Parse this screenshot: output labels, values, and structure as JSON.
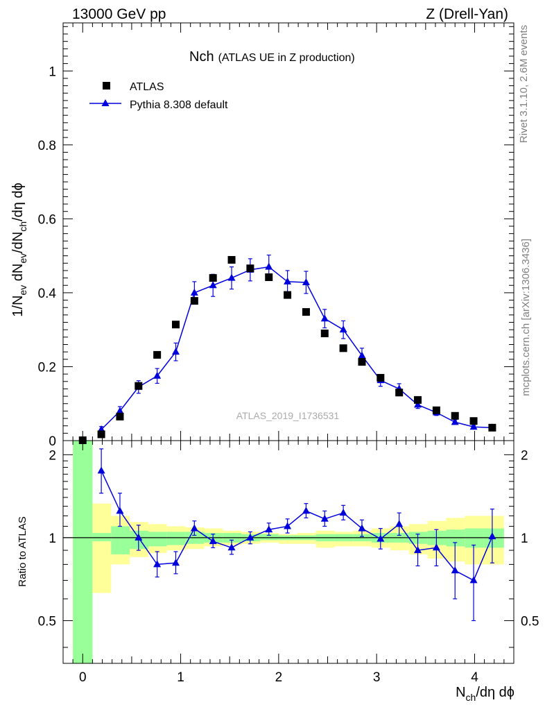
{
  "header": {
    "energy": "13000 GeV pp",
    "process": "Z (Drell-Yan)"
  },
  "side_labels": {
    "rivet": "Rivet 3.1.10,  2.6M events",
    "source": "mcplots.cern.ch [arXiv:1306.3436]"
  },
  "title_main": "Nch",
  "title_sub": "(ATLAS UE in Z production)",
  "watermark": "ATLAS_2019_I1736531",
  "legend": {
    "data_label": "ATLAS",
    "mc_label": "Pythia 8.308 default"
  },
  "axes": {
    "ylabel_main": "1/N_ev dN_ev/dN_ch/dη dϕ",
    "ylabel_ratio": "Ratio to ATLAS",
    "xlabel": "N_ch/dη dϕ"
  },
  "colors": {
    "mc": "#0000dd",
    "data": "#000000",
    "band_inner": "#99ff99",
    "band_outer": "#ffff99"
  },
  "chart_data": [
    {
      "type": "scatter",
      "panel": "main",
      "title": "Nch (ATLAS UE in Z production)",
      "xlabel": "N_ch/dη dϕ",
      "ylabel": "1/N_ev dN_ev/dN_ch/dη dϕ",
      "xlim": [
        -0.2,
        4.4
      ],
      "ylim": [
        0,
        1.13
      ],
      "xticks": [
        0,
        1,
        2,
        3,
        4
      ],
      "yticks": [
        0,
        0.2,
        0.4,
        0.6,
        0.8,
        1
      ],
      "ytick_labels": [
        "0",
        "0.2",
        "0.4",
        "0.6",
        "0.8",
        "1"
      ],
      "x": [
        0,
        0.19,
        0.38,
        0.57,
        0.76,
        0.95,
        1.14,
        1.33,
        1.52,
        1.71,
        1.9,
        2.09,
        2.28,
        2.47,
        2.66,
        2.85,
        3.04,
        3.23,
        3.42,
        3.61,
        3.8,
        3.99,
        4.18
      ],
      "series": [
        {
          "name": "ATLAS",
          "marker": "square",
          "values": [
            0.001,
            0.017,
            0.065,
            0.148,
            0.232,
            0.314,
            0.378,
            0.44,
            0.489,
            0.466,
            0.442,
            0.394,
            0.348,
            0.29,
            0.25,
            0.213,
            0.17,
            0.13,
            0.11,
            0.082,
            0.067,
            0.053,
            0.035
          ]
        },
        {
          "name": "Pythia 8.308 default",
          "marker": "triangle",
          "values": [
            null,
            0.03,
            0.08,
            0.145,
            0.175,
            0.24,
            0.4,
            0.42,
            0.44,
            0.462,
            0.47,
            0.43,
            0.428,
            0.33,
            0.3,
            0.23,
            0.163,
            0.14,
            0.097,
            0.076,
            0.05,
            0.037,
            0.035
          ],
          "errors": [
            null,
            0.008,
            0.012,
            0.017,
            0.02,
            0.024,
            0.03,
            0.03,
            0.03,
            0.03,
            0.032,
            0.03,
            0.03,
            0.025,
            0.024,
            0.02,
            0.016,
            0.014,
            0.01,
            0.008,
            0.006,
            0.004,
            0.004
          ]
        }
      ]
    },
    {
      "type": "line",
      "panel": "ratio",
      "xlabel": "N_ch/dη dϕ",
      "ylabel": "Ratio to ATLAS",
      "xlim": [
        -0.2,
        4.4
      ],
      "ylim": [
        0.35,
        2.25
      ],
      "xticks": [
        0,
        1,
        2,
        3,
        4
      ],
      "xtick_labels": [
        "0",
        "1",
        "2",
        "3",
        "4"
      ],
      "yticks": [
        0.5,
        1,
        2
      ],
      "ytick_labels": [
        "0.5",
        "1",
        "2"
      ],
      "reference_line": 1,
      "x": [
        0.19,
        0.38,
        0.57,
        0.76,
        0.95,
        1.14,
        1.33,
        1.52,
        1.71,
        1.9,
        2.09,
        2.28,
        2.47,
        2.66,
        2.85,
        3.04,
        3.23,
        3.42,
        3.61,
        3.8,
        3.99,
        4.18
      ],
      "series": [
        {
          "name": "Pythia 8.308 default / ATLAS",
          "values": [
            1.75,
            1.25,
            1.0,
            0.8,
            0.81,
            1.08,
            0.97,
            0.92,
            1.0,
            1.07,
            1.1,
            1.25,
            1.17,
            1.23,
            1.08,
            0.99,
            1.12,
            0.9,
            0.92,
            0.76,
            0.7,
            1.01
          ],
          "err_low": [
            0.3,
            0.15,
            0.1,
            0.08,
            0.07,
            0.06,
            0.05,
            0.05,
            0.05,
            0.05,
            0.06,
            0.07,
            0.07,
            0.07,
            0.07,
            0.08,
            0.1,
            0.11,
            0.13,
            0.16,
            0.2,
            0.2
          ],
          "err_high": [
            0.35,
            0.2,
            0.11,
            0.09,
            0.08,
            0.07,
            0.06,
            0.06,
            0.05,
            0.06,
            0.07,
            0.08,
            0.08,
            0.08,
            0.08,
            0.09,
            0.11,
            0.13,
            0.15,
            0.2,
            0.24,
            0.26
          ]
        }
      ],
      "uncertainty_bands": {
        "bin_edges": [
          -0.1,
          0.1,
          0.29,
          0.48,
          0.67,
          0.86,
          1.05,
          1.24,
          1.43,
          1.62,
          1.81,
          2.0,
          2.19,
          2.38,
          2.57,
          2.76,
          2.95,
          3.14,
          3.33,
          3.52,
          3.71,
          3.9,
          4.09,
          4.3
        ],
        "inner_low": [
          0.35,
          0.97,
          0.87,
          0.91,
          0.93,
          0.94,
          0.95,
          0.96,
          0.96,
          0.97,
          0.98,
          0.98,
          0.98,
          0.97,
          0.97,
          0.97,
          0.96,
          0.96,
          0.95,
          0.94,
          0.93,
          0.92,
          0.92
        ],
        "inner_high": [
          2.25,
          1.04,
          1.1,
          1.06,
          1.05,
          1.05,
          1.05,
          1.04,
          1.04,
          1.03,
          1.03,
          1.02,
          1.02,
          1.03,
          1.03,
          1.03,
          1.04,
          1.04,
          1.05,
          1.06,
          1.07,
          1.08,
          1.08
        ],
        "outer_low": [
          0.35,
          0.63,
          0.8,
          0.85,
          0.88,
          0.9,
          0.91,
          0.93,
          0.94,
          0.95,
          0.96,
          0.95,
          0.95,
          0.92,
          0.93,
          0.93,
          0.92,
          0.9,
          0.87,
          0.84,
          0.82,
          0.8,
          0.8
        ],
        "outer_high": [
          2.25,
          1.33,
          1.2,
          1.14,
          1.12,
          1.1,
          1.09,
          1.08,
          1.06,
          1.05,
          1.04,
          1.03,
          1.04,
          1.06,
          1.05,
          1.06,
          1.08,
          1.1,
          1.12,
          1.15,
          1.18,
          1.2,
          1.2
        ]
      }
    }
  ]
}
